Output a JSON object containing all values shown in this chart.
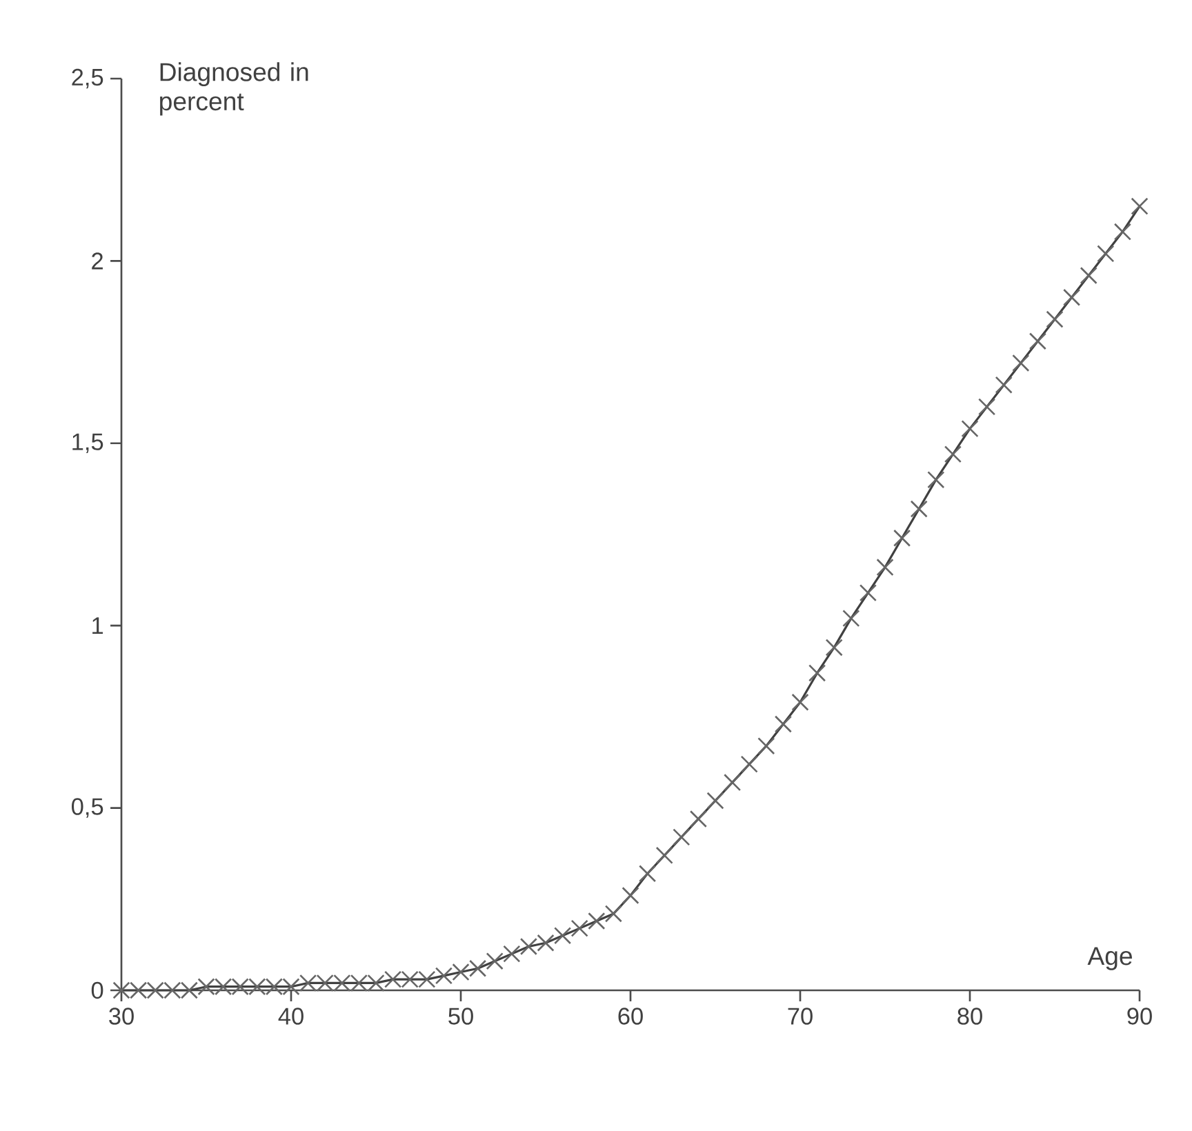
{
  "chart_data": {
    "type": "line",
    "xlabel": "Age",
    "ylabel": "Diagnosed in percent",
    "color": "#404040",
    "marker": "cross",
    "line_style": "solid",
    "x": [
      30,
      31,
      32,
      33,
      34,
      35,
      36,
      37,
      38,
      39,
      40,
      41,
      42,
      43,
      44,
      45,
      46,
      47,
      48,
      49,
      50,
      51,
      52,
      53,
      54,
      55,
      56,
      57,
      58,
      59,
      60,
      61,
      62,
      63,
      64,
      65,
      66,
      67,
      68,
      69,
      70,
      71,
      72,
      73,
      74,
      75,
      76,
      77,
      78,
      79,
      80,
      81,
      82,
      83,
      84,
      85,
      86,
      87,
      88,
      89,
      90
    ],
    "values": [
      0.0,
      0.0,
      0.0,
      0.0,
      0.0,
      0.01,
      0.01,
      0.01,
      0.01,
      0.01,
      0.01,
      0.02,
      0.02,
      0.02,
      0.02,
      0.02,
      0.03,
      0.03,
      0.03,
      0.04,
      0.05,
      0.06,
      0.08,
      0.1,
      0.12,
      0.13,
      0.15,
      0.17,
      0.19,
      0.21,
      0.26,
      0.32,
      0.37,
      0.42,
      0.47,
      0.52,
      0.57,
      0.62,
      0.67,
      0.73,
      0.79,
      0.87,
      0.94,
      1.02,
      1.09,
      1.16,
      1.24,
      1.32,
      1.4,
      1.47,
      1.54,
      1.6,
      1.66,
      1.72,
      1.78,
      1.84,
      1.9,
      1.96,
      2.02,
      2.08,
      2.15
    ],
    "xlim": [
      30,
      90
    ],
    "ylim": [
      0,
      2.5
    ],
    "xticks": [
      30,
      40,
      50,
      60,
      70,
      80,
      90
    ],
    "yticks": [
      0,
      {
        "value": 0.5,
        "label": "0,5"
      },
      1,
      {
        "value": 1.5,
        "label": "1,5"
      },
      2,
      {
        "value": 2.5,
        "label": "2,5"
      }
    ]
  }
}
